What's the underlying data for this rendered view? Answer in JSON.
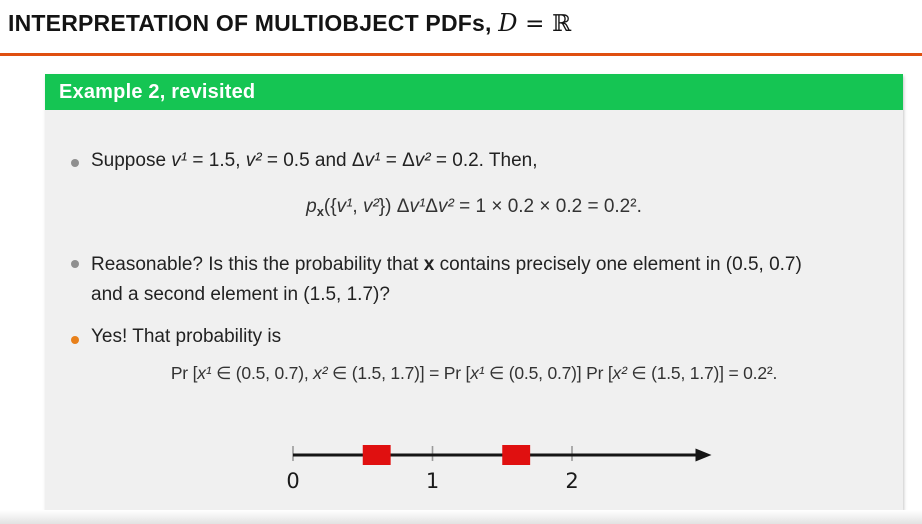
{
  "title": {
    "segments": [
      {
        "t": "INTERPRETATION OF MULTIOBJECT PDFs, "
      },
      {
        "t": "D",
        "s": "tvar"
      },
      {
        "t": " = ℝ",
        "s": "tmath"
      }
    ]
  },
  "block": {
    "header_label": "Example 2, revisited"
  },
  "content": {
    "bullet1": {
      "segments": [
        {
          "t": "Suppose "
        },
        {
          "t": "v¹",
          "s": "var"
        },
        {
          "t": " = 1.5, "
        },
        {
          "t": "v²",
          "s": "var"
        },
        {
          "t": " = 0.5 and Δ"
        },
        {
          "t": "v¹",
          "s": "var"
        },
        {
          "t": " = Δ"
        },
        {
          "t": "v²",
          "s": "var"
        },
        {
          "t": " = 0.2. Then,"
        }
      ]
    },
    "equation1": {
      "segments": [
        {
          "t": "p",
          "s": "var"
        },
        {
          "t": "x",
          "s": "subb"
        },
        {
          "t": "({"
        },
        {
          "t": "v¹",
          "s": "var"
        },
        {
          "t": ", "
        },
        {
          "t": "v²",
          "s": "var"
        },
        {
          "t": "}) Δ"
        },
        {
          "t": "v¹",
          "s": "var"
        },
        {
          "t": "Δ"
        },
        {
          "t": "v²",
          "s": "var"
        },
        {
          "t": " = 1 × 0.2 × 0.2 = 0.2²."
        }
      ]
    },
    "bullet2": {
      "line1": [
        {
          "t": "Reasonable? Is this the probability that "
        },
        {
          "t": "x",
          "s": "bold"
        },
        {
          "t": " contains precisely one element in (0.5, 0.7)"
        }
      ],
      "line2": [
        {
          "t": "and a second element in (1.5, 1.7)?"
        }
      ]
    },
    "bullet3": {
      "segments": [
        {
          "t": "Yes! That probability is"
        }
      ]
    },
    "equation2": {
      "segments": [
        {
          "t": "Pr ["
        },
        {
          "t": "x¹",
          "s": "var"
        },
        {
          "t": " ∈ (0.5, 0.7), "
        },
        {
          "t": "x²",
          "s": "var"
        },
        {
          "t": " ∈ (1.5, 1.7)] = Pr ["
        },
        {
          "t": "x¹",
          "s": "var"
        },
        {
          "t": " ∈ (0.5, 0.7)] Pr ["
        },
        {
          "t": "x²",
          "s": "var"
        },
        {
          "t": " ∈ (1.5, 1.7)] = 0.2²."
        }
      ]
    }
  },
  "numberline": {
    "axis_min": 0,
    "axis_max": 3,
    "ticks": [
      0,
      1,
      2
    ],
    "tick_labels": [
      "0",
      "1",
      "2"
    ],
    "intervals": [
      [
        0.5,
        0.7
      ],
      [
        1.5,
        1.7
      ]
    ],
    "interval_color": "#e01010",
    "axis_color": "#151515",
    "tick_color": "#9a9a9a",
    "label_color": "#1a1a1a"
  },
  "colors": {
    "title_rule": "#df4f10",
    "block_header_bg": "#15c553",
    "block_body_bg": "#f0f0f0",
    "bullet_gray": "#8f8f8f",
    "bullet_orange": "#e8801a"
  }
}
